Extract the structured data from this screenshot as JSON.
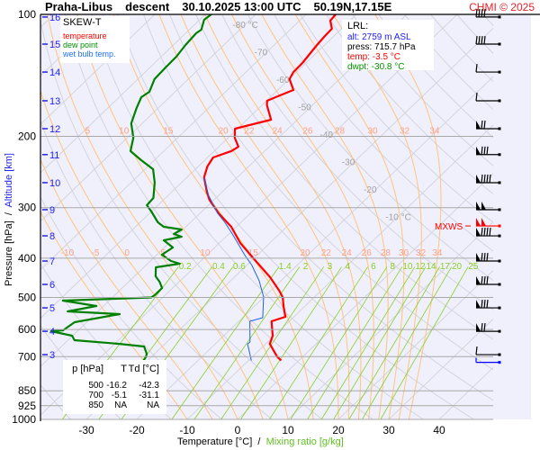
{
  "title": {
    "station": "Praha-Libus",
    "mode": "descent",
    "datetime": "30.10.2025 13:00 UTC",
    "coords": "50.19N,17.15E"
  },
  "copyright": "CHMI © 2025",
  "legend": {
    "title": "SKEW-T",
    "temperature": "temperature",
    "dewpoint": "dew point",
    "wetbulb": "wet bulb temp."
  },
  "lrl": {
    "title": "LRL:",
    "alt": "alt: 2759 m ASL",
    "press": "press: 715.7 hPa",
    "temp": "temp: -3.5 °C",
    "dwpt": "dwpt: -30.8 °C"
  },
  "table": {
    "headers": [
      "p [hPa]",
      "T",
      "Td [°C]"
    ],
    "rows": [
      [
        "500",
        "-16.2",
        "-42.3"
      ],
      [
        "700",
        "-5.1",
        "-31.1"
      ],
      [
        "850",
        "NA",
        "NA"
      ]
    ]
  },
  "axes": {
    "xlabel_temp": "Temperature [°C]",
    "xlabel_sep": "/",
    "xlabel_mix": "Mixing ratio [g/kg]",
    "ylabel_p": "Pressure [hPa]",
    "ylabel_sep": "/",
    "ylabel_alt": "Altitude [km]"
  },
  "chart_data": {
    "type": "line",
    "subtype": "skew-t",
    "xlabel": "Temperature [°C] / Mixing ratio [g/kg]",
    "ylabel": "Pressure [hPa] / Altitude [km]",
    "pressure_ticks": [
      100,
      200,
      300,
      400,
      500,
      600,
      700,
      850,
      925,
      1000
    ],
    "temperature_ticks": [
      -30,
      -20,
      -10,
      0,
      10,
      20,
      30,
      40
    ],
    "ylim_hpa": [
      1000,
      100
    ],
    "altitude_ticks": [
      {
        "km": "16",
        "p": 101.5
      },
      {
        "km": "15",
        "p": 118.4
      },
      {
        "km": "14",
        "p": 138.8
      },
      {
        "km": "13",
        "p": 163.4
      },
      {
        "km": "12",
        "p": 191.5
      },
      {
        "km": "11",
        "p": 221.9
      },
      {
        "km": "10",
        "p": 260.3
      },
      {
        "km": "9",
        "p": 303.5
      },
      {
        "km": "8",
        "p": 352.2
      },
      {
        "km": "7",
        "p": 406.4
      },
      {
        "km": "6",
        "p": 464.2
      },
      {
        "km": "5",
        "p": 530.4
      },
      {
        "km": "4",
        "p": 606.0
      },
      {
        "km": "3",
        "p": 692.0
      }
    ],
    "isotherm_labels": [
      {
        "T": -80,
        "text": "-80 °C"
      },
      {
        "T": -70,
        "text": "-70"
      },
      {
        "T": -60,
        "text": "-60"
      },
      {
        "T": -50,
        "text": "-50"
      },
      {
        "T": -40,
        "text": "-40"
      },
      {
        "T": -30,
        "text": "-30"
      },
      {
        "T": -20,
        "text": "-20"
      },
      {
        "T": -10,
        "text": "-10 °C"
      }
    ],
    "moist_adiabats": [
      -10,
      -5,
      0,
      5,
      10,
      15,
      20,
      22,
      24,
      26,
      28,
      30,
      32,
      34
    ],
    "moist_adiabat_labels_200": [
      "5",
      "10",
      "15",
      "20",
      "22",
      "24",
      "26",
      "28",
      "30",
      "32",
      "34"
    ],
    "moist_adiabat_labels_400": [
      "-10",
      "-5",
      "0",
      "5",
      "10",
      "15",
      "20",
      "22",
      "24",
      "26",
      "28",
      "30",
      "32",
      "34"
    ],
    "mixing_ratio_labels": [
      "0.2",
      "0.4",
      "0.6",
      "1.4",
      "2",
      "3",
      "4",
      "6",
      "8",
      "10",
      "12",
      "14",
      "17",
      "20",
      "25"
    ],
    "colors": {
      "temperature": "#ff0000",
      "dewpoint": "#008000",
      "wetbulb": "#2060e0",
      "isotherm": "#d4d4dc",
      "moist": "#ffc47a",
      "mixing": "#88d020",
      "isobar": "#a8a8a8",
      "altitude": "#2020ff"
    },
    "series": [
      {
        "name": "temperature",
        "points": [
          [
            100,
            -64.1
          ],
          [
            103.6,
            -63.9
          ],
          [
            108.5,
            -61.9
          ],
          [
            113.1,
            -61.8
          ],
          [
            119,
            -61.5
          ],
          [
            131.8,
            -60.7
          ],
          [
            138.8,
            -60.6
          ],
          [
            144.5,
            -59.9
          ],
          [
            153.7,
            -56.9
          ],
          [
            159.3,
            -58.7
          ],
          [
            163.4,
            -59.9
          ],
          [
            167.6,
            -59.0
          ],
          [
            182,
            -55.2
          ],
          [
            184.8,
            -56.8
          ],
          [
            191.5,
            -60.5
          ],
          [
            201.6,
            -58.7
          ],
          [
            212.2,
            -56.1
          ],
          [
            217.6,
            -56.6
          ],
          [
            225.6,
            -58.9
          ],
          [
            237.4,
            -58.2
          ],
          [
            252.5,
            -56.6
          ],
          [
            274,
            -53.1
          ],
          [
            287,
            -50.9
          ],
          [
            309.8,
            -46.3
          ],
          [
            334.5,
            -41.0
          ],
          [
            366.7,
            -35.9
          ],
          [
            396,
            -30.8
          ],
          [
            445.6,
            -22.9
          ],
          [
            481,
            -18.3
          ],
          [
            500,
            -16.2
          ],
          [
            524.8,
            -14.3
          ],
          [
            558,
            -11.7
          ],
          [
            572.6,
            -13.5
          ],
          [
            621.4,
            -10.3
          ],
          [
            650.8,
            -9.2
          ],
          [
            700,
            -5.1
          ],
          [
            715.7,
            -3.5
          ]
        ]
      },
      {
        "name": "dew point",
        "points": [
          [
            100,
            -88.8
          ],
          [
            103.1,
            -89.1
          ],
          [
            109.1,
            -87.6
          ],
          [
            111.3,
            -87.9
          ],
          [
            119,
            -87.6
          ],
          [
            127.2,
            -87.0
          ],
          [
            135.2,
            -86.9
          ],
          [
            144.5,
            -86.7
          ],
          [
            155.3,
            -85.1
          ],
          [
            160.1,
            -85.6
          ],
          [
            170.2,
            -84.3
          ],
          [
            185.8,
            -82.2
          ],
          [
            201.6,
            -78.8
          ],
          [
            217.6,
            -76.6
          ],
          [
            229.1,
            -72.6
          ],
          [
            241.1,
            -68.4
          ],
          [
            260.3,
            -65.3
          ],
          [
            284,
            -62.4
          ],
          [
            295.9,
            -62.2
          ],
          [
            306.7,
            -60.0
          ],
          [
            326.1,
            -56.5
          ],
          [
            334.5,
            -54.4
          ],
          [
            339.7,
            -50.3
          ],
          [
            348.5,
            -50.9
          ],
          [
            353.9,
            -48.8
          ],
          [
            361.3,
            -51.6
          ],
          [
            376.4,
            -48.3
          ],
          [
            392.1,
            -49.0
          ],
          [
            406.4,
            -45.9
          ],
          [
            412.7,
            -43.6
          ],
          [
            421.2,
            -47.6
          ],
          [
            443.3,
            -45.8
          ],
          [
            457.1,
            -43.9
          ],
          [
            473.8,
            -42.1
          ],
          [
            493.5,
            -42.1
          ],
          [
            500,
            -42.3
          ],
          [
            503.7,
            -49.4
          ],
          [
            508.9,
            -59.2
          ],
          [
            524.8,
            -51.4
          ],
          [
            541.1,
            -56.0
          ],
          [
            549.5,
            -45.1
          ],
          [
            575.4,
            -52.4
          ],
          [
            602.6,
            -53.0
          ],
          [
            605.7,
            -55.2
          ],
          [
            621.4,
            -50.1
          ],
          [
            637.5,
            -48.7
          ],
          [
            650.8,
            -39.0
          ],
          [
            660.7,
            -33.6
          ],
          [
            688.3,
            -31.6
          ],
          [
            700,
            -31.1
          ],
          [
            715.7,
            -30.8
          ]
        ]
      },
      {
        "name": "wet bulb temp.",
        "points": [
          [
            252.5,
            -56.6
          ],
          [
            279.7,
            -52.0
          ],
          [
            309.8,
            -46.5
          ],
          [
            326.1,
            -43.2
          ],
          [
            348.5,
            -39.3
          ],
          [
            392.1,
            -32.6
          ],
          [
            416.9,
            -28.9
          ],
          [
            454.9,
            -24.3
          ],
          [
            498.7,
            -20.1
          ],
          [
            560.9,
            -16.0
          ],
          [
            572.6,
            -17.8
          ],
          [
            644.1,
            -13.5
          ],
          [
            650.8,
            -13.6
          ],
          [
            715.7,
            -9.4
          ]
        ]
      }
    ],
    "wind": [
      {
        "km": "16",
        "p": 101.5,
        "speed_kt": 40
      },
      {
        "km": "15",
        "p": 118.4,
        "speed_kt": 40
      },
      {
        "km": "14",
        "p": 138.8,
        "speed_kt": 10
      },
      {
        "km": "13",
        "p": 163.4,
        "speed_kt": 10
      },
      {
        "km": "12",
        "p": 191.5,
        "speed_kt": 70
      },
      {
        "km": "11",
        "p": 221.9,
        "speed_kt": 80
      },
      {
        "km": "10",
        "p": 260.3,
        "speed_kt": 90
      },
      {
        "km": "9",
        "p": 303.5,
        "speed_kt": 100
      },
      {
        "km": "8",
        "p": 352.2,
        "speed_kt": 90
      },
      {
        "km": "7",
        "p": 406.4,
        "speed_kt": 80
      },
      {
        "km": "6",
        "p": 464.2,
        "speed_kt": 80
      },
      {
        "km": "5",
        "p": 530.4,
        "speed_kt": 80
      },
      {
        "km": "4",
        "p": 606.0,
        "speed_kt": 70
      },
      {
        "km": "3",
        "p": 692.0,
        "speed_kt": 10
      },
      {
        "km": "LRL",
        "p": 715.7,
        "speed_kt": 5,
        "color": "#0000ff"
      }
    ],
    "mxws": {
      "label": "MXWS",
      "p": 332.9,
      "speed_kt": 100,
      "color": "#ff0000"
    }
  }
}
